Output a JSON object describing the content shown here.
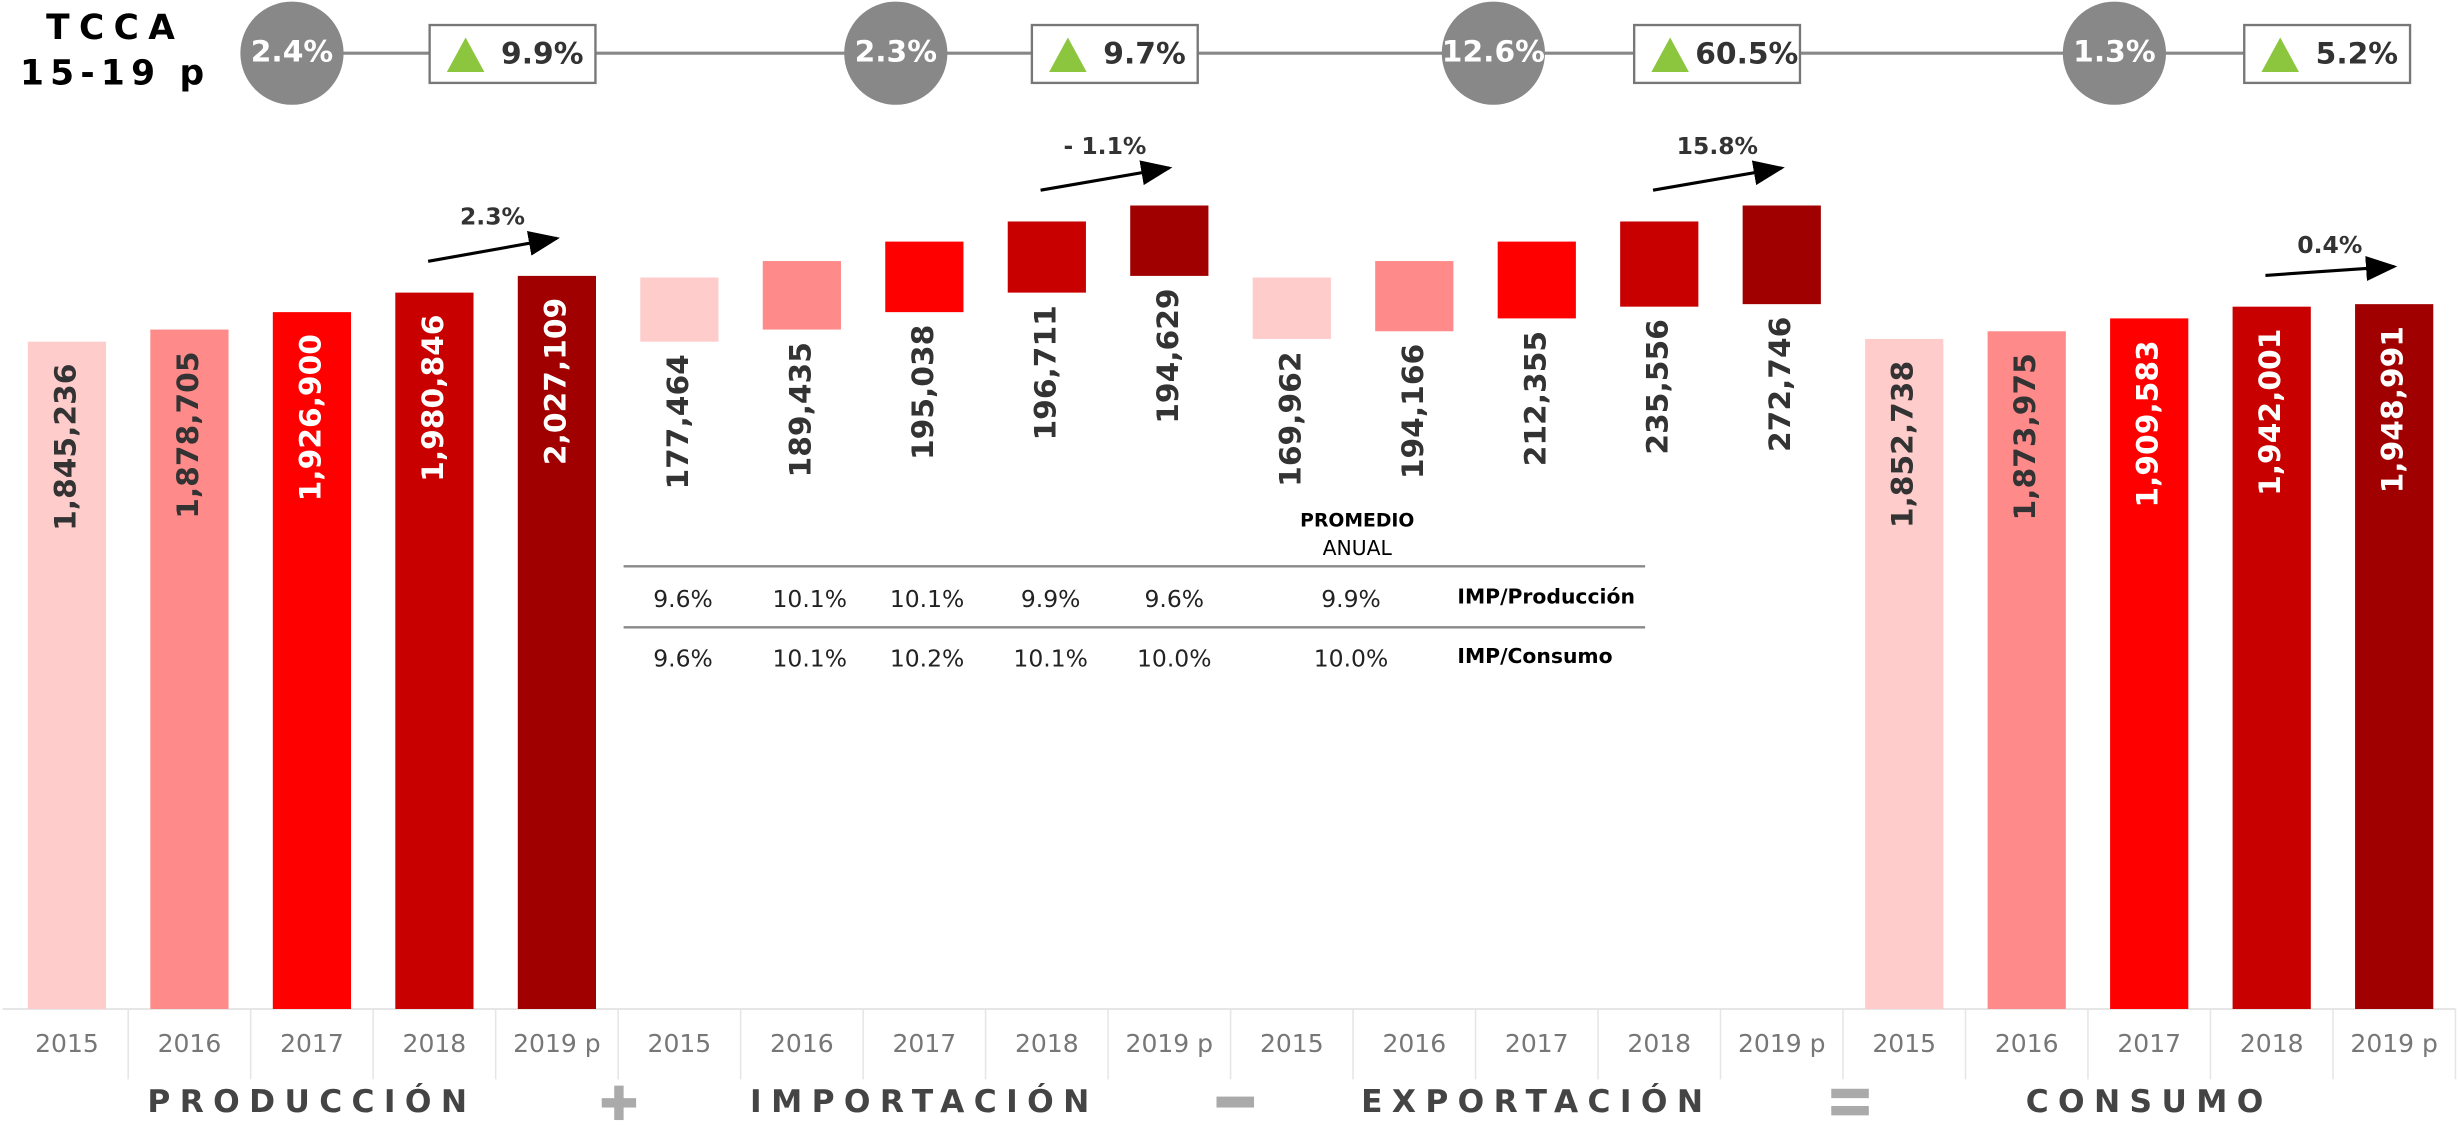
{
  "chart_data": {
    "type": "waterfall",
    "tcca_title": "TCCA",
    "tcca_period": "15-19 p",
    "categories": [
      "2015",
      "2016",
      "2017",
      "2018",
      "2019 p"
    ],
    "colors": [
      "#ffcccc",
      "#ff8a8a",
      "#ff0000",
      "#c80000",
      "#a00000"
    ],
    "ylim": [
      0,
      2790000
    ],
    "series": [
      {
        "name": "PRODUCCIÓN",
        "role": "base",
        "tcca": "2.4%",
        "change": "9.9%",
        "trend": "2.3%",
        "values": [
          1845236,
          1878705,
          1926900,
          1980846,
          2027109
        ],
        "value_labels": [
          "1,845,236",
          "1,878,705",
          "1,926,900",
          "1,980,846",
          "2,027,109"
        ]
      },
      {
        "name": "IMPORTACIÓN",
        "role": "add",
        "tcca": "2.3%",
        "change": "9.7%",
        "trend": "- 1.1%",
        "values": [
          177464,
          189435,
          195038,
          196711,
          194629
        ],
        "value_labels": [
          "177,464",
          "189,435",
          "195,038",
          "196,711",
          "194,629"
        ]
      },
      {
        "name": "EXPORTACIÓN",
        "role": "subtract",
        "tcca": "12.6%",
        "change": "60.5%",
        "trend": "15.8%",
        "values": [
          169962,
          194166,
          212355,
          235556,
          272746
        ],
        "value_labels": [
          "169,962",
          "194,166",
          "212,355",
          "235,556",
          "272,746"
        ]
      },
      {
        "name": "CONSUMO",
        "role": "total",
        "tcca": "1.3%",
        "change": "5.2%",
        "trend": "0.4%",
        "values": [
          1852738,
          1873975,
          1909583,
          1942001,
          1948991
        ],
        "value_labels": [
          "1,852,738",
          "1,873,975",
          "1,909,583",
          "1,942,001",
          "1,948,991"
        ]
      }
    ],
    "table": {
      "header": [
        "PROMEDIO",
        "ANUAL"
      ],
      "rows": [
        {
          "label": "IMP/Producción",
          "values": [
            "9.6%",
            "10.1%",
            "10.1%",
            "9.9%",
            "9.6%"
          ],
          "average": "9.9%"
        },
        {
          "label": "IMP/Consumo",
          "values": [
            "9.6%",
            "10.1%",
            "10.2%",
            "10.1%",
            "10.0%"
          ],
          "average": "10.0%"
        }
      ]
    }
  }
}
